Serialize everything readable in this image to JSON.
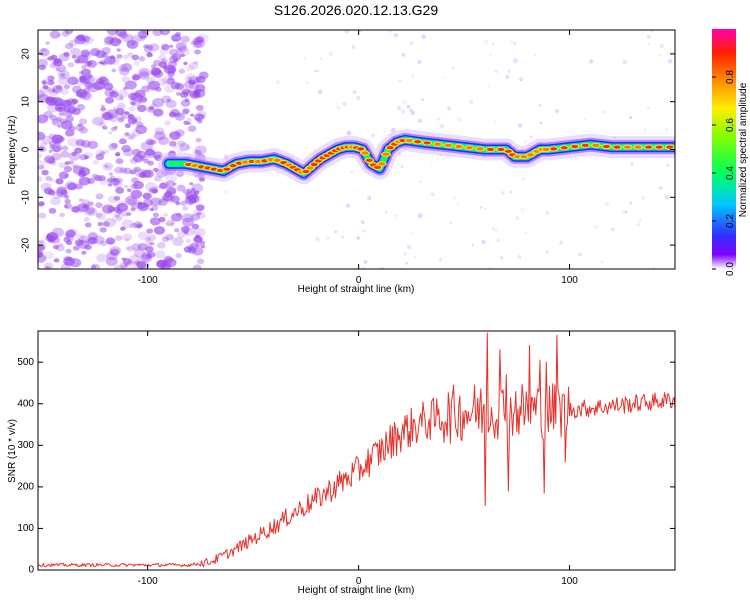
{
  "title": "S126.2026.020.12.13.G29",
  "colors": {
    "snr_line": "#e8312b",
    "noise": "#9a4af0",
    "colormap": [
      "#ffffff",
      "#8000ff",
      "#3030ff",
      "#00c8ff",
      "#00ff60",
      "#80ff00",
      "#ffee00",
      "#ff9000",
      "#ff2000",
      "#ff00aa"
    ]
  },
  "chart_data": [
    {
      "type": "heatmap",
      "title": "S126.2026.020.12.13.G29",
      "xlabel": "Height of straight line (km)",
      "ylabel": "Frequency (Hz)",
      "xlim": [
        -152,
        150
      ],
      "ylim": [
        -25,
        25
      ],
      "x_ticks": [
        "-100",
        "0",
        "100"
      ],
      "x_tick_values": [
        -100,
        0,
        100
      ],
      "y_ticks": [
        "20",
        "10",
        "0",
        "-10",
        "-20"
      ],
      "y_tick_values": [
        20,
        10,
        0,
        -10,
        -20
      ],
      "colorbar": {
        "label": "Normalized spectral amplitude",
        "range": [
          0,
          1
        ],
        "ticks": [
          "0.0",
          "0.2",
          "0.4",
          "0.6",
          "0.8"
        ],
        "tick_values": [
          0.0,
          0.2,
          0.4,
          0.6,
          0.8
        ]
      },
      "noise_region_x": [
        -152,
        -73
      ],
      "ridge": {
        "x": [
          -90,
          -82,
          -76,
          -70,
          -64,
          -58,
          -52,
          -46,
          -40,
          -34,
          -30,
          -26,
          -22,
          -18,
          -14,
          -10,
          -6,
          -2,
          2,
          6,
          10,
          14,
          18,
          22,
          30,
          40,
          50,
          60,
          70,
          74,
          80,
          86,
          90,
          100,
          110,
          120,
          130,
          140,
          150
        ],
        "freq": [
          -3,
          -3,
          -3.5,
          -4,
          -4.5,
          -3,
          -2.5,
          -2.5,
          -2,
          -3,
          -4,
          -5,
          -3.5,
          -2,
          -1,
          0,
          0.5,
          0.5,
          0,
          -3,
          -4,
          0,
          1.5,
          2,
          1.5,
          1,
          0.5,
          0,
          0,
          -1.5,
          -1.5,
          0,
          0,
          0.5,
          1,
          0.5,
          0.5,
          0.5,
          0.5
        ]
      }
    },
    {
      "type": "line",
      "xlabel": "Height of straight line (km)",
      "ylabel": "SNR (10 * v/v)",
      "xlim": [
        -152,
        150
      ],
      "ylim": [
        0,
        575
      ],
      "x_ticks": [
        "-100",
        "0",
        "100"
      ],
      "x_tick_values": [
        -100,
        0,
        100
      ],
      "y_ticks": [
        "0",
        "100",
        "200",
        "300",
        "400",
        "500"
      ],
      "y_tick_values": [
        0,
        100,
        200,
        300,
        400,
        500
      ],
      "series": [
        {
          "name": "SNR",
          "trend": {
            "x": [
              -152,
              -110,
              -80,
              -70,
              -60,
              -50,
              -40,
              -30,
              -20,
              -10,
              0,
              10,
              20,
              30,
              40,
              50,
              60,
              70,
              80,
              90,
              100,
              110,
              120,
              130,
              140,
              150
            ],
            "y": [
              12,
              12,
              12,
              20,
              45,
              75,
              105,
              140,
              170,
              205,
              240,
              285,
              330,
              355,
              370,
              380,
              385,
              385,
              385,
              385,
              385,
              390,
              395,
              400,
              405,
              410
            ]
          },
          "spikes": {
            "x": [
              61,
              67,
              70,
              74,
              81,
              86,
              89,
              94,
              60,
              71,
              88,
              98
            ],
            "y": [
              570,
              530,
              470,
              380,
              540,
              505,
              500,
              565,
              155,
              190,
              185,
              260
            ]
          }
        }
      ]
    }
  ]
}
